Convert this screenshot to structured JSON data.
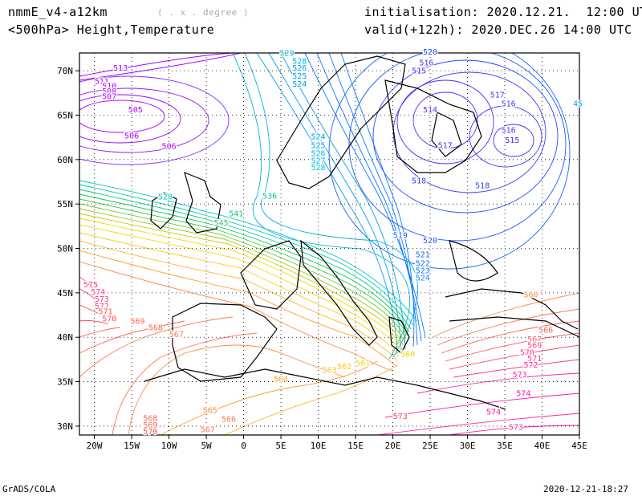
{
  "header": {
    "model": "nmmE_v4-a12km",
    "units": "( . x . degree )",
    "level": "<500hPa> Height,Temperature",
    "init": "initialisation: 2020.12.21.  12:00 UTC",
    "valid": "valid(+122h): 2020.DEC.26 14:00 UTC"
  },
  "footer": {
    "left": "GrADS/COLA",
    "right": "2020-12-21-18:27"
  },
  "map": {
    "lon_range": [
      -22,
      45
    ],
    "lat_range": [
      29,
      72
    ],
    "lon_ticks": [
      "20W",
      "15W",
      "10W",
      "5W",
      "0",
      "5E",
      "10E",
      "15E",
      "20E",
      "25E",
      "30E",
      "35E",
      "40E",
      "45E"
    ],
    "lat_ticks": [
      "70N",
      "65N",
      "60N",
      "55N",
      "50N",
      "45N",
      "40N",
      "35N",
      "30N"
    ],
    "grid": "dotted every 5 degrees"
  },
  "contours": [
    {
      "lon": -16.5,
      "lat": 70.0,
      "value": "513",
      "color": "#b400ff"
    },
    {
      "lon": -19.0,
      "lat": 68.5,
      "value": "511",
      "color": "#b400ff"
    },
    {
      "lon": -18.0,
      "lat": 68.0,
      "value": "510",
      "color": "#b400ff"
    },
    {
      "lon": -18.0,
      "lat": 67.4,
      "value": "508",
      "color": "#b400ff"
    },
    {
      "lon": -18.0,
      "lat": 66.8,
      "value": "507",
      "color": "#b400ff"
    },
    {
      "lon": -14.5,
      "lat": 65.3,
      "value": "505",
      "color": "#b400ff"
    },
    {
      "lon": -15.0,
      "lat": 62.4,
      "value": "506",
      "color": "#b400ff"
    },
    {
      "lon": -10.0,
      "lat": 61.2,
      "value": "506",
      "color": "#b400ff"
    },
    {
      "lon": -10.5,
      "lat": 55.5,
      "value": "528",
      "color": "#00c8c8"
    },
    {
      "lon": 5.8,
      "lat": 71.7,
      "value": "529",
      "color": "#00b4dc"
    },
    {
      "lon": 7.5,
      "lat": 70.8,
      "value": "528",
      "color": "#00b4dc"
    },
    {
      "lon": 7.5,
      "lat": 70.0,
      "value": "526",
      "color": "#00a0f0"
    },
    {
      "lon": 7.5,
      "lat": 69.1,
      "value": "525",
      "color": "#00a0f0"
    },
    {
      "lon": 7.5,
      "lat": 68.2,
      "value": "524",
      "color": "#00a0f0"
    },
    {
      "lon": 10.0,
      "lat": 62.3,
      "value": "524",
      "color": "#00a0f0"
    },
    {
      "lon": 10.0,
      "lat": 61.3,
      "value": "525",
      "color": "#00a0f0"
    },
    {
      "lon": 10.0,
      "lat": 60.4,
      "value": "526",
      "color": "#00b4dc"
    },
    {
      "lon": 10.0,
      "lat": 59.6,
      "value": "527",
      "color": "#00b4dc"
    },
    {
      "lon": 10.0,
      "lat": 58.8,
      "value": "528",
      "color": "#00c8c8"
    },
    {
      "lon": 3.5,
      "lat": 55.6,
      "value": "536",
      "color": "#00c8a0"
    },
    {
      "lon": -1.0,
      "lat": 53.6,
      "value": "541",
      "color": "#00c878"
    },
    {
      "lon": -3.0,
      "lat": 52.6,
      "value": "545",
      "color": "#32c850"
    },
    {
      "lon": 25.0,
      "lat": 71.8,
      "value": "520",
      "color": "#1450ff"
    },
    {
      "lon": 24.5,
      "lat": 70.6,
      "value": "516",
      "color": "#3c3cff"
    },
    {
      "lon": 23.5,
      "lat": 69.7,
      "value": "515",
      "color": "#5028ff"
    },
    {
      "lon": 25.0,
      "lat": 65.3,
      "value": "514",
      "color": "#6428ff"
    },
    {
      "lon": 34.0,
      "lat": 67.0,
      "value": "517",
      "color": "#3c3cff"
    },
    {
      "lon": 35.5,
      "lat": 66.0,
      "value": "516",
      "color": "#3c3cff"
    },
    {
      "lon": 35.5,
      "lat": 63.0,
      "value": "516",
      "color": "#3c3cff"
    },
    {
      "lon": 36.0,
      "lat": 61.9,
      "value": "515",
      "color": "#5028ff"
    },
    {
      "lon": 27.0,
      "lat": 61.3,
      "value": "517",
      "color": "#3c3cff"
    },
    {
      "lon": 23.5,
      "lat": 57.3,
      "value": "518",
      "color": "#2846ff"
    },
    {
      "lon": 32.0,
      "lat": 56.8,
      "value": "518",
      "color": "#2846ff"
    },
    {
      "lon": 21.0,
      "lat": 51.2,
      "value": "519",
      "color": "#1e5aff"
    },
    {
      "lon": 25.0,
      "lat": 50.6,
      "value": "520",
      "color": "#1464ff"
    },
    {
      "lon": 24.0,
      "lat": 49.0,
      "value": "521",
      "color": "#1464ff"
    },
    {
      "lon": 24.0,
      "lat": 48.0,
      "value": "522",
      "color": "#0a78ff"
    },
    {
      "lon": 24.0,
      "lat": 47.2,
      "value": "523",
      "color": "#0a78ff"
    },
    {
      "lon": 24.0,
      "lat": 46.4,
      "value": "524",
      "color": "#0a8cff"
    },
    {
      "lon": 47.0,
      "lat": 66.0,
      "value": "45",
      "color": "#00a0f0"
    },
    {
      "lon": -20.5,
      "lat": 45.6,
      "value": "575",
      "color": "#ff3c78"
    },
    {
      "lon": -19.5,
      "lat": 44.8,
      "value": "574",
      "color": "#ff3c78"
    },
    {
      "lon": -19.0,
      "lat": 44.0,
      "value": "573",
      "color": "#ff3c78"
    },
    {
      "lon": -19.0,
      "lat": 43.2,
      "value": "572",
      "color": "#ff3c78"
    },
    {
      "lon": -18.5,
      "lat": 42.6,
      "value": "571",
      "color": "#ff5050"
    },
    {
      "lon": -18.0,
      "lat": 41.8,
      "value": "570",
      "color": "#ff5050"
    },
    {
      "lon": -14.2,
      "lat": 41.5,
      "value": "569",
      "color": "#ff6450"
    },
    {
      "lon": -11.8,
      "lat": 40.8,
      "value": "568",
      "color": "#ff6450"
    },
    {
      "lon": -9.0,
      "lat": 40.0,
      "value": "567",
      "color": "#ff7850"
    },
    {
      "lon": -4.5,
      "lat": 31.5,
      "value": "565",
      "color": "#ff8c3c"
    },
    {
      "lon": -2.0,
      "lat": 30.5,
      "value": "566",
      "color": "#ff7850"
    },
    {
      "lon": -4.8,
      "lat": 29.3,
      "value": "567",
      "color": "#ff7850"
    },
    {
      "lon": -12.5,
      "lat": 30.6,
      "value": "568",
      "color": "#ff6450"
    },
    {
      "lon": -12.5,
      "lat": 29.8,
      "value": "569",
      "color": "#ff6450"
    },
    {
      "lon": -12.5,
      "lat": 29.1,
      "value": "570",
      "color": "#ff5050"
    },
    {
      "lon": 5.0,
      "lat": 35.0,
      "value": "564",
      "color": "#ffa028"
    },
    {
      "lon": 11.5,
      "lat": 36.0,
      "value": "563",
      "color": "#ffb41e"
    },
    {
      "lon": 13.5,
      "lat": 36.4,
      "value": "562",
      "color": "#ffc814"
    },
    {
      "lon": 16.0,
      "lat": 36.8,
      "value": "561",
      "color": "#ffd20a"
    },
    {
      "lon": 22.0,
      "lat": 37.8,
      "value": "560",
      "color": "#e6dc00"
    },
    {
      "lon": 21.0,
      "lat": 30.8,
      "value": "573",
      "color": "#ff3c78"
    },
    {
      "lon": 38.5,
      "lat": 44.5,
      "value": "560",
      "color": "#ff8c3c"
    },
    {
      "lon": 40.5,
      "lat": 40.5,
      "value": "566",
      "color": "#ff5a64"
    },
    {
      "lon": 39.0,
      "lat": 39.5,
      "value": "567",
      "color": "#ff5a64"
    },
    {
      "lon": 39.0,
      "lat": 38.8,
      "value": "569",
      "color": "#ff4678"
    },
    {
      "lon": 38.0,
      "lat": 38.0,
      "value": "570",
      "color": "#ff3c8c"
    },
    {
      "lon": 39.0,
      "lat": 37.3,
      "value": "571",
      "color": "#ff3c8c"
    },
    {
      "lon": 38.5,
      "lat": 36.6,
      "value": "572",
      "color": "#ff28a0"
    },
    {
      "lon": 37.0,
      "lat": 35.5,
      "value": "573",
      "color": "#ff28a0"
    },
    {
      "lon": 37.5,
      "lat": 33.4,
      "value": "574",
      "color": "#ff14b4"
    },
    {
      "lon": 33.5,
      "lat": 31.3,
      "value": "574",
      "color": "#ff14b4"
    },
    {
      "lon": 36.5,
      "lat": 29.6,
      "value": "573",
      "color": "#ff28a0"
    }
  ]
}
